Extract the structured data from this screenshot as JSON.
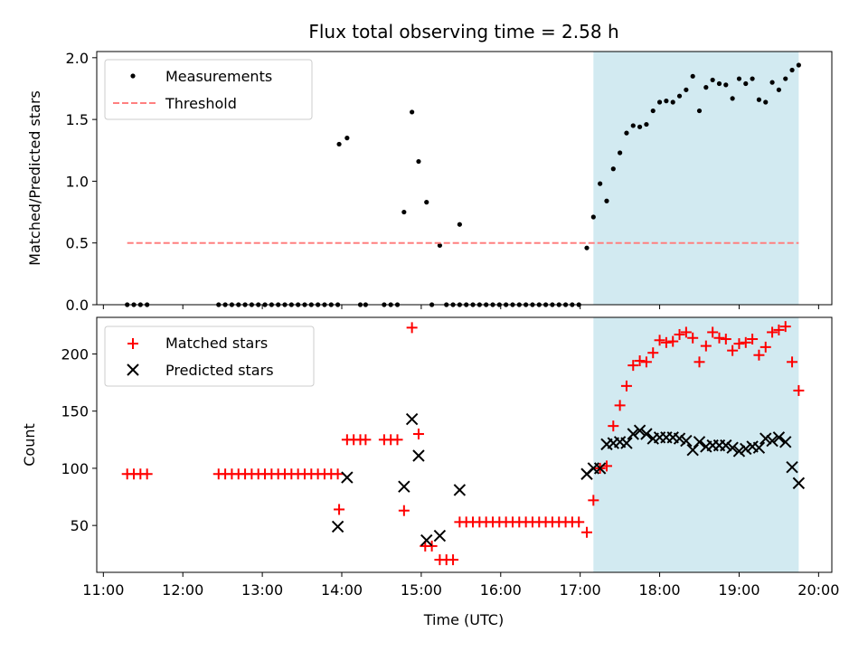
{
  "figure": {
    "title": "Flux total observing time = 2.58 h",
    "xlabel": "Time (UTC)",
    "x_ticks": [
      "11:00",
      "12:00",
      "13:00",
      "14:00",
      "15:00",
      "16:00",
      "17:00",
      "18:00",
      "19:00",
      "20:00"
    ],
    "highlight_color": "#add8e6",
    "highlight_range": [
      "17:10",
      "19:45"
    ]
  },
  "chart_data": [
    {
      "type": "scatter",
      "title": "Flux total observing time = 2.58 h",
      "xlabel": "",
      "ylabel": "Matched/Predicted stars",
      "x_unit": "hours UTC",
      "xlim": [
        "10:55",
        "20:10"
      ],
      "ylim": [
        0,
        2.05
      ],
      "y_ticks": [
        "0.0",
        "0.5",
        "1.0",
        "1.5",
        "2.0"
      ],
      "y_tick_values": [
        0,
        0.5,
        1.0,
        1.5,
        2.0
      ],
      "legend_position": "top-left",
      "series": [
        {
          "name": "Measurements",
          "color": "#000000",
          "marker": "dot",
          "points": [
            [
              "11:18",
              0
            ],
            [
              "11:23",
              0
            ],
            [
              "11:28",
              0
            ],
            [
              "11:33",
              0
            ],
            [
              "12:27",
              0
            ],
            [
              "12:32",
              0
            ],
            [
              "12:37",
              0
            ],
            [
              "12:42",
              0
            ],
            [
              "12:47",
              0
            ],
            [
              "12:52",
              0
            ],
            [
              "12:57",
              0
            ],
            [
              "13:02",
              0
            ],
            [
              "13:07",
              0
            ],
            [
              "13:12",
              0
            ],
            [
              "13:17",
              0
            ],
            [
              "13:22",
              0
            ],
            [
              "13:27",
              0
            ],
            [
              "13:32",
              0
            ],
            [
              "13:37",
              0
            ],
            [
              "13:42",
              0
            ],
            [
              "13:47",
              0
            ],
            [
              "13:52",
              0
            ],
            [
              "13:57",
              0.0
            ],
            [
              "13:58",
              1.3
            ],
            [
              "14:04",
              1.35
            ],
            [
              "14:14",
              0
            ],
            [
              "14:18",
              0
            ],
            [
              "14:32",
              0
            ],
            [
              "14:37",
              0
            ],
            [
              "14:42",
              0
            ],
            [
              "14:47",
              0.75
            ],
            [
              "14:53",
              1.56
            ],
            [
              "14:58",
              1.16
            ],
            [
              "15:04",
              0.83
            ],
            [
              "15:08",
              0
            ],
            [
              "15:14",
              0.48
            ],
            [
              "15:19",
              0
            ],
            [
              "15:24",
              0
            ],
            [
              "15:29",
              0.65
            ],
            [
              "15:29",
              0
            ],
            [
              "15:34",
              0
            ],
            [
              "15:39",
              0
            ],
            [
              "15:44",
              0
            ],
            [
              "15:49",
              0
            ],
            [
              "15:54",
              0
            ],
            [
              "15:59",
              0
            ],
            [
              "16:04",
              0
            ],
            [
              "16:09",
              0
            ],
            [
              "16:14",
              0
            ],
            [
              "16:19",
              0
            ],
            [
              "16:24",
              0
            ],
            [
              "16:29",
              0
            ],
            [
              "16:34",
              0
            ],
            [
              "16:39",
              0
            ],
            [
              "16:44",
              0
            ],
            [
              "16:49",
              0
            ],
            [
              "16:54",
              0
            ],
            [
              "16:59",
              0
            ],
            [
              "17:05",
              0.46
            ],
            [
              "17:10",
              0.71
            ],
            [
              "17:15",
              0.98
            ],
            [
              "17:20",
              0.84
            ],
            [
              "17:25",
              1.1
            ],
            [
              "17:30",
              1.23
            ],
            [
              "17:35",
              1.39
            ],
            [
              "17:40",
              1.45
            ],
            [
              "17:45",
              1.44
            ],
            [
              "17:50",
              1.46
            ],
            [
              "17:55",
              1.57
            ],
            [
              "18:00",
              1.64
            ],
            [
              "18:05",
              1.65
            ],
            [
              "18:10",
              1.64
            ],
            [
              "18:15",
              1.69
            ],
            [
              "18:20",
              1.74
            ],
            [
              "18:25",
              1.85
            ],
            [
              "18:30",
              1.57
            ],
            [
              "18:35",
              1.76
            ],
            [
              "18:40",
              1.82
            ],
            [
              "18:45",
              1.79
            ],
            [
              "18:50",
              1.78
            ],
            [
              "18:55",
              1.67
            ],
            [
              "19:00",
              1.83
            ],
            [
              "19:05",
              1.79
            ],
            [
              "19:10",
              1.83
            ],
            [
              "19:15",
              1.66
            ],
            [
              "19:20",
              1.64
            ],
            [
              "19:25",
              1.8
            ],
            [
              "19:30",
              1.74
            ],
            [
              "19:35",
              1.83
            ],
            [
              "19:40",
              1.9
            ],
            [
              "19:45",
              1.94
            ]
          ]
        },
        {
          "name": "Threshold",
          "color": "#ff7f7f",
          "style": "dashed",
          "points": [
            [
              "11:18",
              0.5
            ],
            [
              "19:45",
              0.5
            ]
          ]
        }
      ]
    },
    {
      "type": "scatter",
      "title": "",
      "xlabel": "Time (UTC)",
      "ylabel": "Count",
      "x_unit": "hours UTC",
      "xlim": [
        "10:55",
        "20:10"
      ],
      "ylim": [
        9,
        232
      ],
      "y_ticks": [
        "50",
        "100",
        "150",
        "200"
      ],
      "y_tick_values": [
        50,
        100,
        150,
        200
      ],
      "legend_position": "top-left",
      "series": [
        {
          "name": "Matched stars",
          "color": "#ff0000",
          "marker": "plus",
          "points": [
            [
              "11:18",
              95
            ],
            [
              "11:23",
              95
            ],
            [
              "11:28",
              95
            ],
            [
              "11:33",
              95
            ],
            [
              "12:27",
              95
            ],
            [
              "12:32",
              95
            ],
            [
              "12:37",
              95
            ],
            [
              "12:42",
              95
            ],
            [
              "12:47",
              95
            ],
            [
              "12:52",
              95
            ],
            [
              "12:57",
              95
            ],
            [
              "13:02",
              95
            ],
            [
              "13:07",
              95
            ],
            [
              "13:12",
              95
            ],
            [
              "13:17",
              95
            ],
            [
              "13:22",
              95
            ],
            [
              "13:27",
              95
            ],
            [
              "13:32",
              95
            ],
            [
              "13:37",
              95
            ],
            [
              "13:42",
              95
            ],
            [
              "13:47",
              95
            ],
            [
              "13:52",
              95
            ],
            [
              "13:57",
              95
            ],
            [
              "13:58",
              64
            ],
            [
              "14:04",
              125
            ],
            [
              "14:09",
              125
            ],
            [
              "14:14",
              125
            ],
            [
              "14:18",
              125
            ],
            [
              "14:32",
              125
            ],
            [
              "14:37",
              125
            ],
            [
              "14:42",
              125
            ],
            [
              "14:47",
              63
            ],
            [
              "14:53",
              223
            ],
            [
              "14:58",
              130
            ],
            [
              "15:03",
              32
            ],
            [
              "15:08",
              32
            ],
            [
              "15:14",
              20
            ],
            [
              "15:19",
              20
            ],
            [
              "15:24",
              20
            ],
            [
              "15:29",
              53
            ],
            [
              "15:34",
              53
            ],
            [
              "15:39",
              53
            ],
            [
              "15:44",
              53
            ],
            [
              "15:49",
              53
            ],
            [
              "15:54",
              53
            ],
            [
              "15:59",
              53
            ],
            [
              "16:04",
              53
            ],
            [
              "16:09",
              53
            ],
            [
              "16:14",
              53
            ],
            [
              "16:19",
              53
            ],
            [
              "16:24",
              53
            ],
            [
              "16:29",
              53
            ],
            [
              "16:34",
              53
            ],
            [
              "16:39",
              53
            ],
            [
              "16:44",
              53
            ],
            [
              "16:49",
              53
            ],
            [
              "16:54",
              53
            ],
            [
              "16:59",
              53
            ],
            [
              "17:05",
              44
            ],
            [
              "17:10",
              72
            ],
            [
              "17:15",
              100
            ],
            [
              "17:20",
              102
            ],
            [
              "17:25",
              137
            ],
            [
              "17:30",
              155
            ],
            [
              "17:35",
              172
            ],
            [
              "17:40",
              190
            ],
            [
              "17:45",
              194
            ],
            [
              "17:50",
              193
            ],
            [
              "17:55",
              201
            ],
            [
              "18:00",
              212
            ],
            [
              "18:05",
              210
            ],
            [
              "18:10",
              211
            ],
            [
              "18:15",
              217
            ],
            [
              "18:20",
              219
            ],
            [
              "18:25",
              214
            ],
            [
              "18:30",
              193
            ],
            [
              "18:35",
              207
            ],
            [
              "18:40",
              219
            ],
            [
              "18:45",
              214
            ],
            [
              "18:50",
              213
            ],
            [
              "18:55",
              203
            ],
            [
              "19:00",
              209
            ],
            [
              "19:05",
              210
            ],
            [
              "19:10",
              213
            ],
            [
              "19:15",
              199
            ],
            [
              "19:20",
              206
            ],
            [
              "19:25",
              219
            ],
            [
              "19:30",
              221
            ],
            [
              "19:35",
              224
            ],
            [
              "19:40",
              193
            ],
            [
              "19:45",
              168
            ]
          ]
        },
        {
          "name": "Predicted stars",
          "color": "#000000",
          "marker": "x",
          "points": [
            [
              "13:57",
              49
            ],
            [
              "14:04",
              92
            ],
            [
              "14:47",
              84
            ],
            [
              "14:53",
              143
            ],
            [
              "14:58",
              111
            ],
            [
              "15:04",
              37
            ],
            [
              "15:14",
              41
            ],
            [
              "15:29",
              81
            ],
            [
              "17:05",
              95
            ],
            [
              "17:10",
              100
            ],
            [
              "17:15",
              100
            ],
            [
              "17:20",
              121
            ],
            [
              "17:25",
              122
            ],
            [
              "17:30",
              123
            ],
            [
              "17:35",
              122
            ],
            [
              "17:40",
              130
            ],
            [
              "17:45",
              133
            ],
            [
              "17:50",
              130
            ],
            [
              "17:55",
              126
            ],
            [
              "18:00",
              127
            ],
            [
              "18:05",
              127
            ],
            [
              "18:10",
              127
            ],
            [
              "18:15",
              126
            ],
            [
              "18:20",
              124
            ],
            [
              "18:25",
              116
            ],
            [
              "18:30",
              123
            ],
            [
              "18:35",
              119
            ],
            [
              "18:40",
              120
            ],
            [
              "18:45",
              120
            ],
            [
              "18:50",
              120
            ],
            [
              "18:55",
              118
            ],
            [
              "19:00",
              115
            ],
            [
              "19:05",
              117
            ],
            [
              "19:10",
              119
            ],
            [
              "19:15",
              118
            ],
            [
              "19:20",
              126
            ],
            [
              "19:25",
              124
            ],
            [
              "19:30",
              127
            ],
            [
              "19:35",
              123
            ],
            [
              "19:40",
              101
            ],
            [
              "19:45",
              87
            ]
          ]
        }
      ]
    }
  ]
}
